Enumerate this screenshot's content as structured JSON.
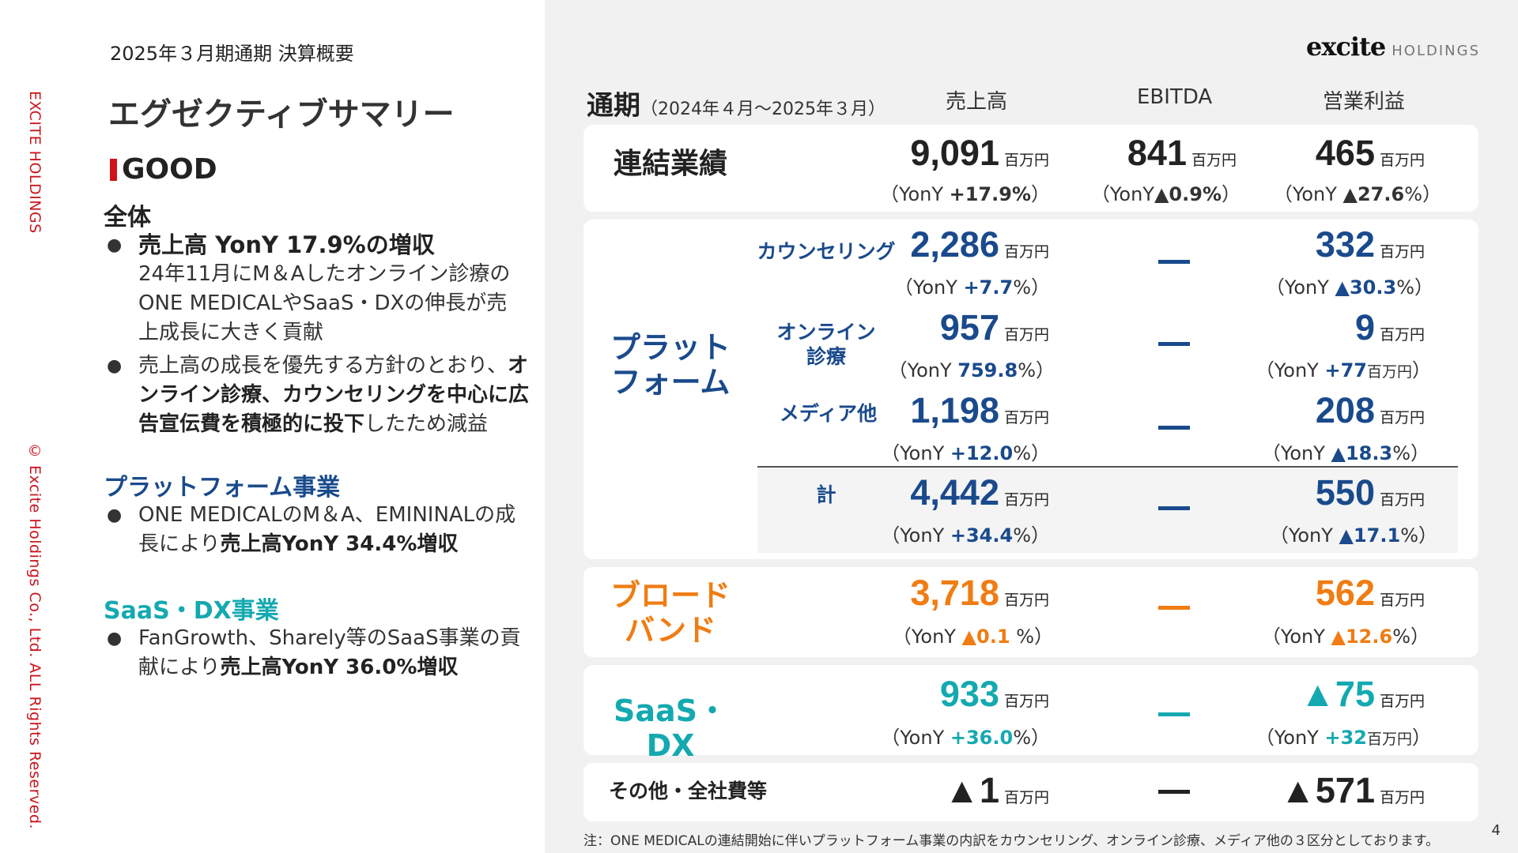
{
  "sidebar": {
    "company": "EXCITE HOLDINGS",
    "copyright": "© Excite Holdings Co., Ltd. ALL Rights Reserved."
  },
  "left": {
    "subtitle": "2025年３月期通期 決算概要",
    "title": "エグゼクティブサマリー",
    "good": "GOOD",
    "overall": {
      "heading": "全体",
      "b1_title": "売上高 YonY 17.9%の増収",
      "b1_body": "24年11月にM＆Aしたオンライン診療のONE MEDICALやSaaS・DXの伸長が売上成長に大きく貢献",
      "b2_part1": "売上高の成長を優先する方針のとおり、",
      "b2_bold": "オンライン診療、カウンセリングを中心に広告宣伝費を積極的に投下",
      "b2_part3": "したため減益"
    },
    "platform": {
      "heading": "プラットフォーム事業",
      "body": "ONE MEDICALのM＆A、EMININALの成長により",
      "bold": "売上高YonY 34.4%増収"
    },
    "saas": {
      "heading": "SaaS・DX事業",
      "body": "FanGrowth、Sharely等のSaaS事業の貢献により",
      "bold": "売上高YonY 36.0%増収"
    },
    "colors": {
      "red": "#c8161d",
      "platform_blue": "#1a4a8c",
      "saas_teal": "#14a9b0",
      "broadband_orange": "#f07c12"
    }
  },
  "logo": {
    "mark": "excite",
    "text": "HOLDINGS"
  },
  "table": {
    "period_label": "通期",
    "period_range": "（2024年４月～2025年３月）",
    "col_sales": "売上高",
    "col_ebitda": "EBITDA",
    "col_op": "営業利益",
    "unit": "百万円",
    "consolidated": {
      "label": "連結業績",
      "sales": "9,091",
      "sales_yoy_pre": "（YonY ",
      "sales_yoy": "+17.9%",
      "sales_yoy_post": "）",
      "ebitda": "841",
      "ebitda_yoy_pre": "（YonY",
      "ebitda_yoy": "▲0.9%",
      "ebitda_yoy_post": "）",
      "op": "465",
      "op_yoy_pre": "（YonY ",
      "op_yoy": "▲27.6",
      "op_yoy_post": "%）"
    },
    "platform": {
      "label_line1": "プラット",
      "label_line2": "フォーム",
      "counseling": {
        "label": "カウンセリング",
        "sales": "2,286",
        "sales_yoy_pre": "（YonY ",
        "sales_yoy": "+7.7",
        "sales_yoy_post": "%）",
        "ebitda": "—",
        "op": "332",
        "op_yoy_pre": "（YonY ",
        "op_yoy": "▲30.3",
        "op_yoy_post": "%）"
      },
      "online": {
        "label_line1": "オンライン",
        "label_line2": "診療",
        "sales": "957",
        "sales_yoy_pre": "（YonY ",
        "sales_yoy": "759.8",
        "sales_yoy_post": "%）",
        "ebitda": "—",
        "op": "9",
        "op_yoy_pre": "（YonY ",
        "op_yoy": "+77",
        "op_yoy_unit": "百万円",
        "op_yoy_post": "）"
      },
      "media": {
        "label": "メディア他",
        "sales": "1,198",
        "sales_yoy_pre": "（YonY ",
        "sales_yoy": "+12.0",
        "sales_yoy_post": "%）",
        "ebitda": "—",
        "op": "208",
        "op_yoy_pre": "（YonY ",
        "op_yoy": "▲18.3",
        "op_yoy_post": "%）"
      },
      "total": {
        "label": "計",
        "sales": "4,442",
        "sales_yoy_pre": "（YonY ",
        "sales_yoy": "+34.4",
        "sales_yoy_post": "%）",
        "ebitda": "—",
        "op": "550",
        "op_yoy_pre": "（YonY ",
        "op_yoy": "▲17.1",
        "op_yoy_post": "%）"
      }
    },
    "broadband": {
      "label_line1": "ブロード",
      "label_line2": "バンド",
      "sales": "3,718",
      "sales_yoy_pre": "（YonY ",
      "sales_yoy": "▲0.1",
      "sales_yoy_post": " %）",
      "ebitda": "—",
      "op": "562",
      "op_yoy_pre": "（YonY ",
      "op_yoy": "▲12.6",
      "op_yoy_post": "%）"
    },
    "saas": {
      "label": "SaaS・DX",
      "sales": "933",
      "sales_yoy_pre": "（YonY ",
      "sales_yoy": "+36.0",
      "sales_yoy_post": "%）",
      "ebitda": "—",
      "op": "▲75",
      "op_yoy_pre": "（YonY ",
      "op_yoy": "+32",
      "op_yoy_unit": "百万円",
      "op_yoy_post": "）"
    },
    "other": {
      "label": "その他・全社費等",
      "sales": "▲1",
      "ebitda": "—",
      "op": "▲571"
    }
  },
  "note": "注：ONE MEDICALの連結開始に伴いプラットフォーム事業の内訳をカウンセリング、オンライン診療、メディア他の３区分としております。",
  "page_number": "4"
}
